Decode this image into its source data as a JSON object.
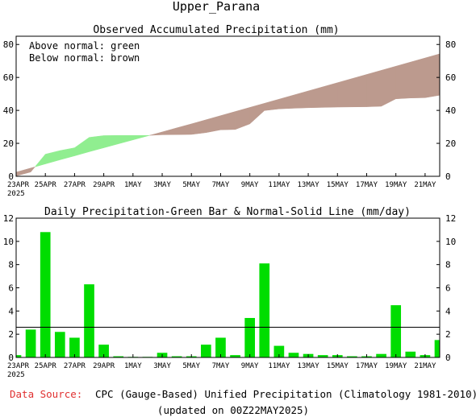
{
  "title": "Upper_Parana",
  "top_panel": {
    "title": "Observed Accumulated Precipitation (mm)",
    "note_line1": "Above normal: green",
    "note_line2": "Below normal: brown",
    "colors": {
      "above": "#90ee90",
      "below": "#bc9a8e"
    }
  },
  "bottom_panel": {
    "title": "Daily Precipitation-Green Bar & Normal-Solid Line (mm/day)",
    "colors": {
      "bar": "#00dd00",
      "normal": "#000000"
    }
  },
  "x_ticks": [
    "23APR",
    "25APR",
    "27APR",
    "29APR",
    "1MAY",
    "3MAY",
    "5MAY",
    "7MAY",
    "9MAY",
    "11MAY",
    "13MAY",
    "15MAY",
    "17MAY",
    "19MAY",
    "21MAY"
  ],
  "x_year": "2025",
  "footer": {
    "source_label": "Data Source:",
    "source_text": "CPC (Gauge-Based) Unified Precipitation (Climatology 1981-2010)",
    "updated": "(updated on 00Z22MAY2025)",
    "source_label_color": "#e03030"
  },
  "chart_data": [
    {
      "type": "area",
      "title": "Observed Accumulated Precipitation (mm)",
      "x": [
        "23APR",
        "24APR",
        "25APR",
        "26APR",
        "27APR",
        "28APR",
        "29APR",
        "30APR",
        "1MAY",
        "2MAY",
        "3MAY",
        "4MAY",
        "5MAY",
        "6MAY",
        "7MAY",
        "8MAY",
        "9MAY",
        "10MAY",
        "11MAY",
        "12MAY",
        "13MAY",
        "14MAY",
        "15MAY",
        "16MAY",
        "17MAY",
        "18MAY",
        "19MAY",
        "20MAY",
        "21MAY",
        "22MAY"
      ],
      "series": [
        {
          "name": "Observed",
          "values": [
            0.2,
            2.6,
            13.4,
            15.6,
            17.3,
            23.6,
            24.7,
            24.8,
            24.8,
            24.8,
            25.2,
            25.3,
            25.4,
            26.5,
            28.2,
            28.4,
            31.8,
            39.9,
            40.9,
            41.3,
            41.6,
            41.8,
            42.0,
            42.1,
            42.2,
            42.5,
            47.0,
            47.5,
            47.7,
            49.2
          ],
          "color": "observed"
        },
        {
          "name": "Normal",
          "values": [
            2.5,
            5.0,
            7.5,
            10.0,
            12.4,
            14.9,
            17.3,
            19.7,
            22.1,
            24.5,
            26.9,
            29.4,
            31.8,
            34.3,
            36.8,
            39.3,
            41.8,
            44.3,
            46.8,
            49.3,
            51.8,
            54.3,
            56.8,
            59.3,
            61.8,
            64.3,
            66.8,
            69.3,
            71.8,
            74.3
          ],
          "color": "normal"
        }
      ],
      "ylim": [
        0,
        85
      ],
      "yticks": [
        0,
        20,
        40,
        60,
        80
      ]
    },
    {
      "type": "bar",
      "title": "Daily Precipitation-Green Bar & Normal-Solid Line (mm/day)",
      "x": [
        "23APR",
        "24APR",
        "25APR",
        "26APR",
        "27APR",
        "28APR",
        "29APR",
        "30APR",
        "1MAY",
        "2MAY",
        "3MAY",
        "4MAY",
        "5MAY",
        "6MAY",
        "7MAY",
        "8MAY",
        "9MAY",
        "10MAY",
        "11MAY",
        "12MAY",
        "13MAY",
        "14MAY",
        "15MAY",
        "16MAY",
        "17MAY",
        "18MAY",
        "19MAY",
        "20MAY",
        "21MAY",
        "22MAY"
      ],
      "series": [
        {
          "name": "Daily Precipitation",
          "values": [
            0.2,
            2.4,
            10.8,
            2.2,
            1.7,
            6.3,
            1.1,
            0.1,
            0.05,
            0.05,
            0.4,
            0.1,
            0.1,
            1.1,
            1.7,
            0.2,
            3.4,
            8.1,
            1.0,
            0.4,
            0.3,
            0.2,
            0.2,
            0.1,
            0.1,
            0.3,
            4.5,
            0.5,
            0.2,
            1.5
          ]
        },
        {
          "name": "Normal",
          "values": [
            2.6,
            2.6,
            2.6,
            2.6,
            2.6,
            2.6,
            2.6,
            2.6,
            2.6,
            2.6,
            2.6,
            2.6,
            2.6,
            2.6,
            2.6,
            2.6,
            2.6,
            2.6,
            2.6,
            2.6,
            2.6,
            2.6,
            2.6,
            2.6,
            2.6,
            2.6,
            2.6,
            2.6,
            2.6,
            2.6
          ]
        }
      ],
      "ylim": [
        0,
        12
      ],
      "yticks": [
        0,
        2,
        4,
        6,
        8,
        10,
        12
      ]
    }
  ]
}
